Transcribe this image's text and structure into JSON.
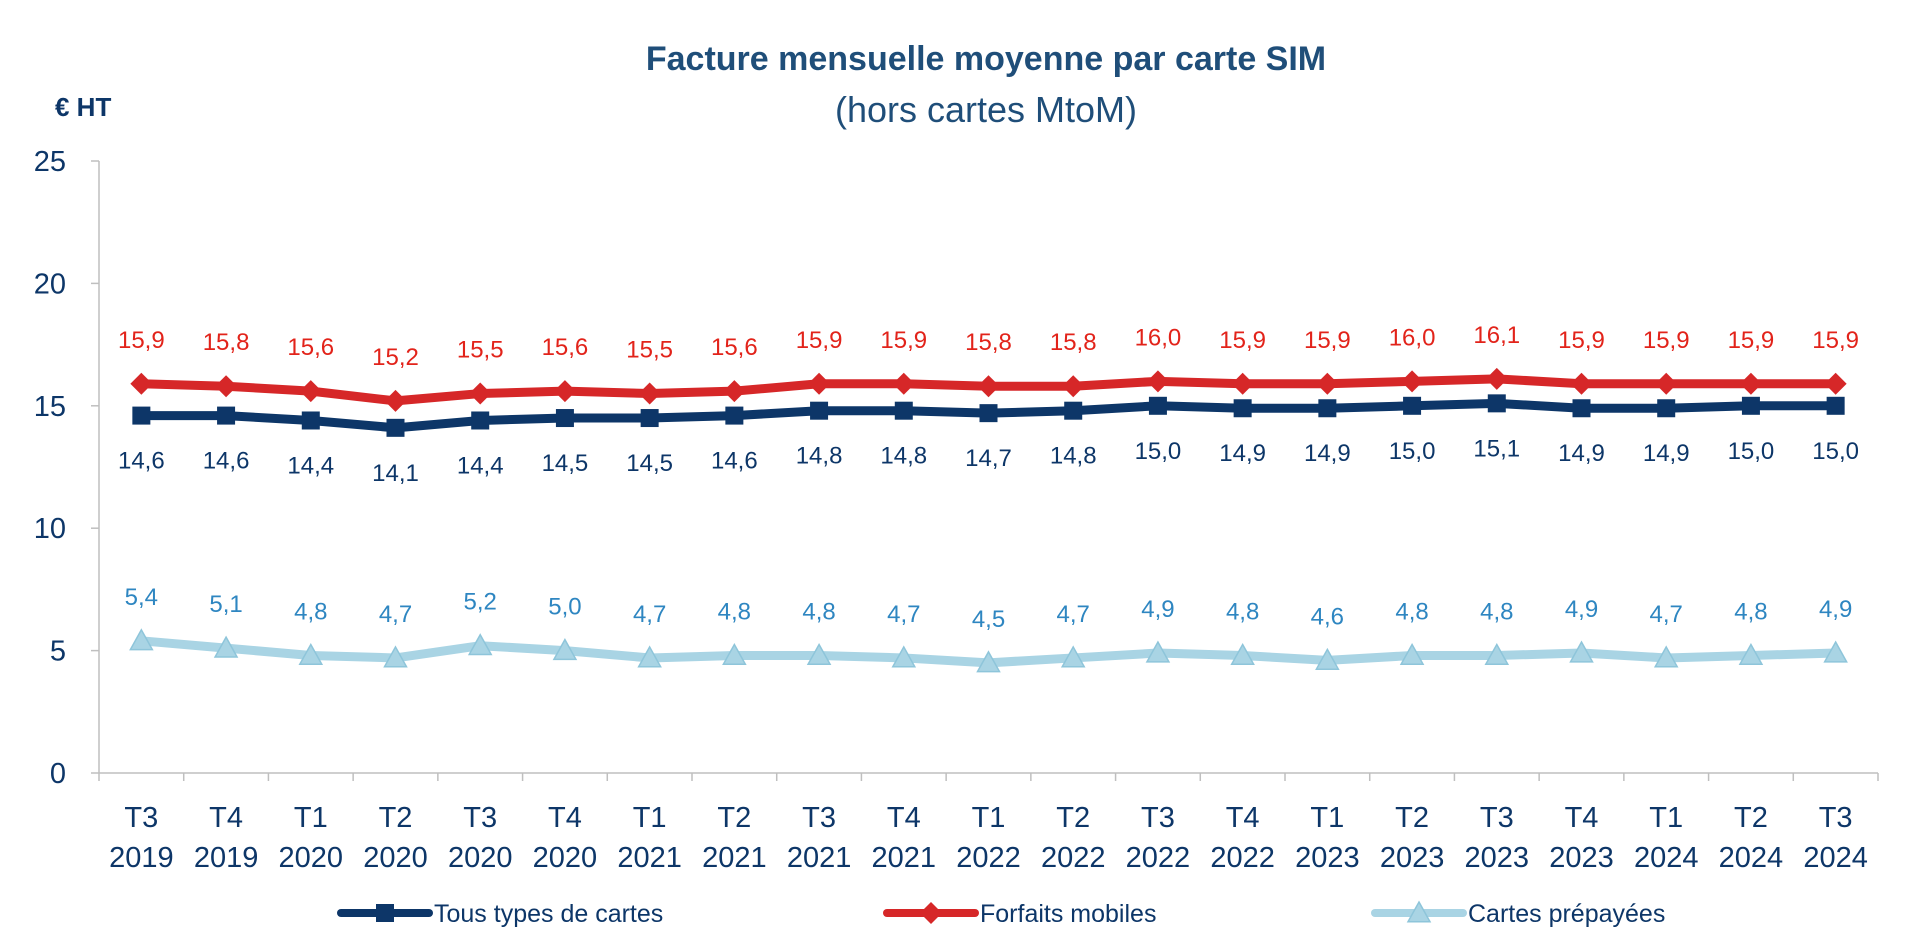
{
  "chart_data": {
    "type": "line",
    "title": "Facture mensuelle moyenne par carte SIM",
    "subtitle": "(hors cartes MtoM)",
    "ylabel": "€ HT",
    "xlabel": "",
    "ylim": [
      0,
      25
    ],
    "yticks": [
      0,
      5,
      10,
      15,
      20,
      25
    ],
    "grid": false,
    "legend_position": "bottom",
    "categories": [
      [
        "T3",
        "2019"
      ],
      [
        "T4",
        "2019"
      ],
      [
        "T1",
        "2020"
      ],
      [
        "T2",
        "2020"
      ],
      [
        "T3",
        "2020"
      ],
      [
        "T4",
        "2020"
      ],
      [
        "T1",
        "2021"
      ],
      [
        "T2",
        "2021"
      ],
      [
        "T3",
        "2021"
      ],
      [
        "T4",
        "2021"
      ],
      [
        "T1",
        "2022"
      ],
      [
        "T2",
        "2022"
      ],
      [
        "T3",
        "2022"
      ],
      [
        "T4",
        "2022"
      ],
      [
        "T1",
        "2023"
      ],
      [
        "T2",
        "2023"
      ],
      [
        "T3",
        "2023"
      ],
      [
        "T4",
        "2023"
      ],
      [
        "T1",
        "2024"
      ],
      [
        "T2",
        "2024"
      ],
      [
        "T3",
        "2024"
      ]
    ],
    "series": [
      {
        "name": "Tous types de cartes",
        "color": "#0d3668",
        "marker": "square",
        "label_position": "below",
        "label_color": "#0d3668",
        "values": [
          14.6,
          14.6,
          14.4,
          14.1,
          14.4,
          14.5,
          14.5,
          14.6,
          14.8,
          14.8,
          14.7,
          14.8,
          15.0,
          14.9,
          14.9,
          15.0,
          15.1,
          14.9,
          14.9,
          15.0,
          15.0
        ],
        "labels": [
          "14,6",
          "14,6",
          "14,4",
          "14,1",
          "14,4",
          "14,5",
          "14,5",
          "14,6",
          "14,8",
          "14,8",
          "14,7",
          "14,8",
          "15,0",
          "14,9",
          "14,9",
          "15,0",
          "15,1",
          "14,9",
          "14,9",
          "15,0",
          "15,0"
        ]
      },
      {
        "name": "Forfaits mobiles",
        "color": "#d62728",
        "marker": "diamond",
        "label_position": "above",
        "label_color": "#e2231a",
        "values": [
          15.9,
          15.8,
          15.6,
          15.2,
          15.5,
          15.6,
          15.5,
          15.6,
          15.9,
          15.9,
          15.8,
          15.8,
          16.0,
          15.9,
          15.9,
          16.0,
          16.1,
          15.9,
          15.9,
          15.9,
          15.9
        ],
        "labels": [
          "15,9",
          "15,8",
          "15,6",
          "15,2",
          "15,5",
          "15,6",
          "15,5",
          "15,6",
          "15,9",
          "15,9",
          "15,8",
          "15,8",
          "16,0",
          "15,9",
          "15,9",
          "16,0",
          "16,1",
          "15,9",
          "15,9",
          "15,9",
          "15,9"
        ]
      },
      {
        "name": "Cartes prépayées",
        "color": "#a9d4e4",
        "marker": "triangle",
        "label_position": "above",
        "label_color": "#2e86c1",
        "values": [
          5.4,
          5.1,
          4.8,
          4.7,
          5.2,
          5.0,
          4.7,
          4.8,
          4.8,
          4.7,
          4.5,
          4.7,
          4.9,
          4.8,
          4.6,
          4.8,
          4.8,
          4.9,
          4.7,
          4.8,
          4.9
        ],
        "labels": [
          "5,4",
          "5,1",
          "4,8",
          "4,7",
          "5,2",
          "5,0",
          "4,7",
          "4,8",
          "4,8",
          "4,7",
          "4,5",
          "4,7",
          "4,9",
          "4,8",
          "4,6",
          "4,8",
          "4,8",
          "4,9",
          "4,7",
          "4,8",
          "4,9"
        ]
      }
    ]
  }
}
